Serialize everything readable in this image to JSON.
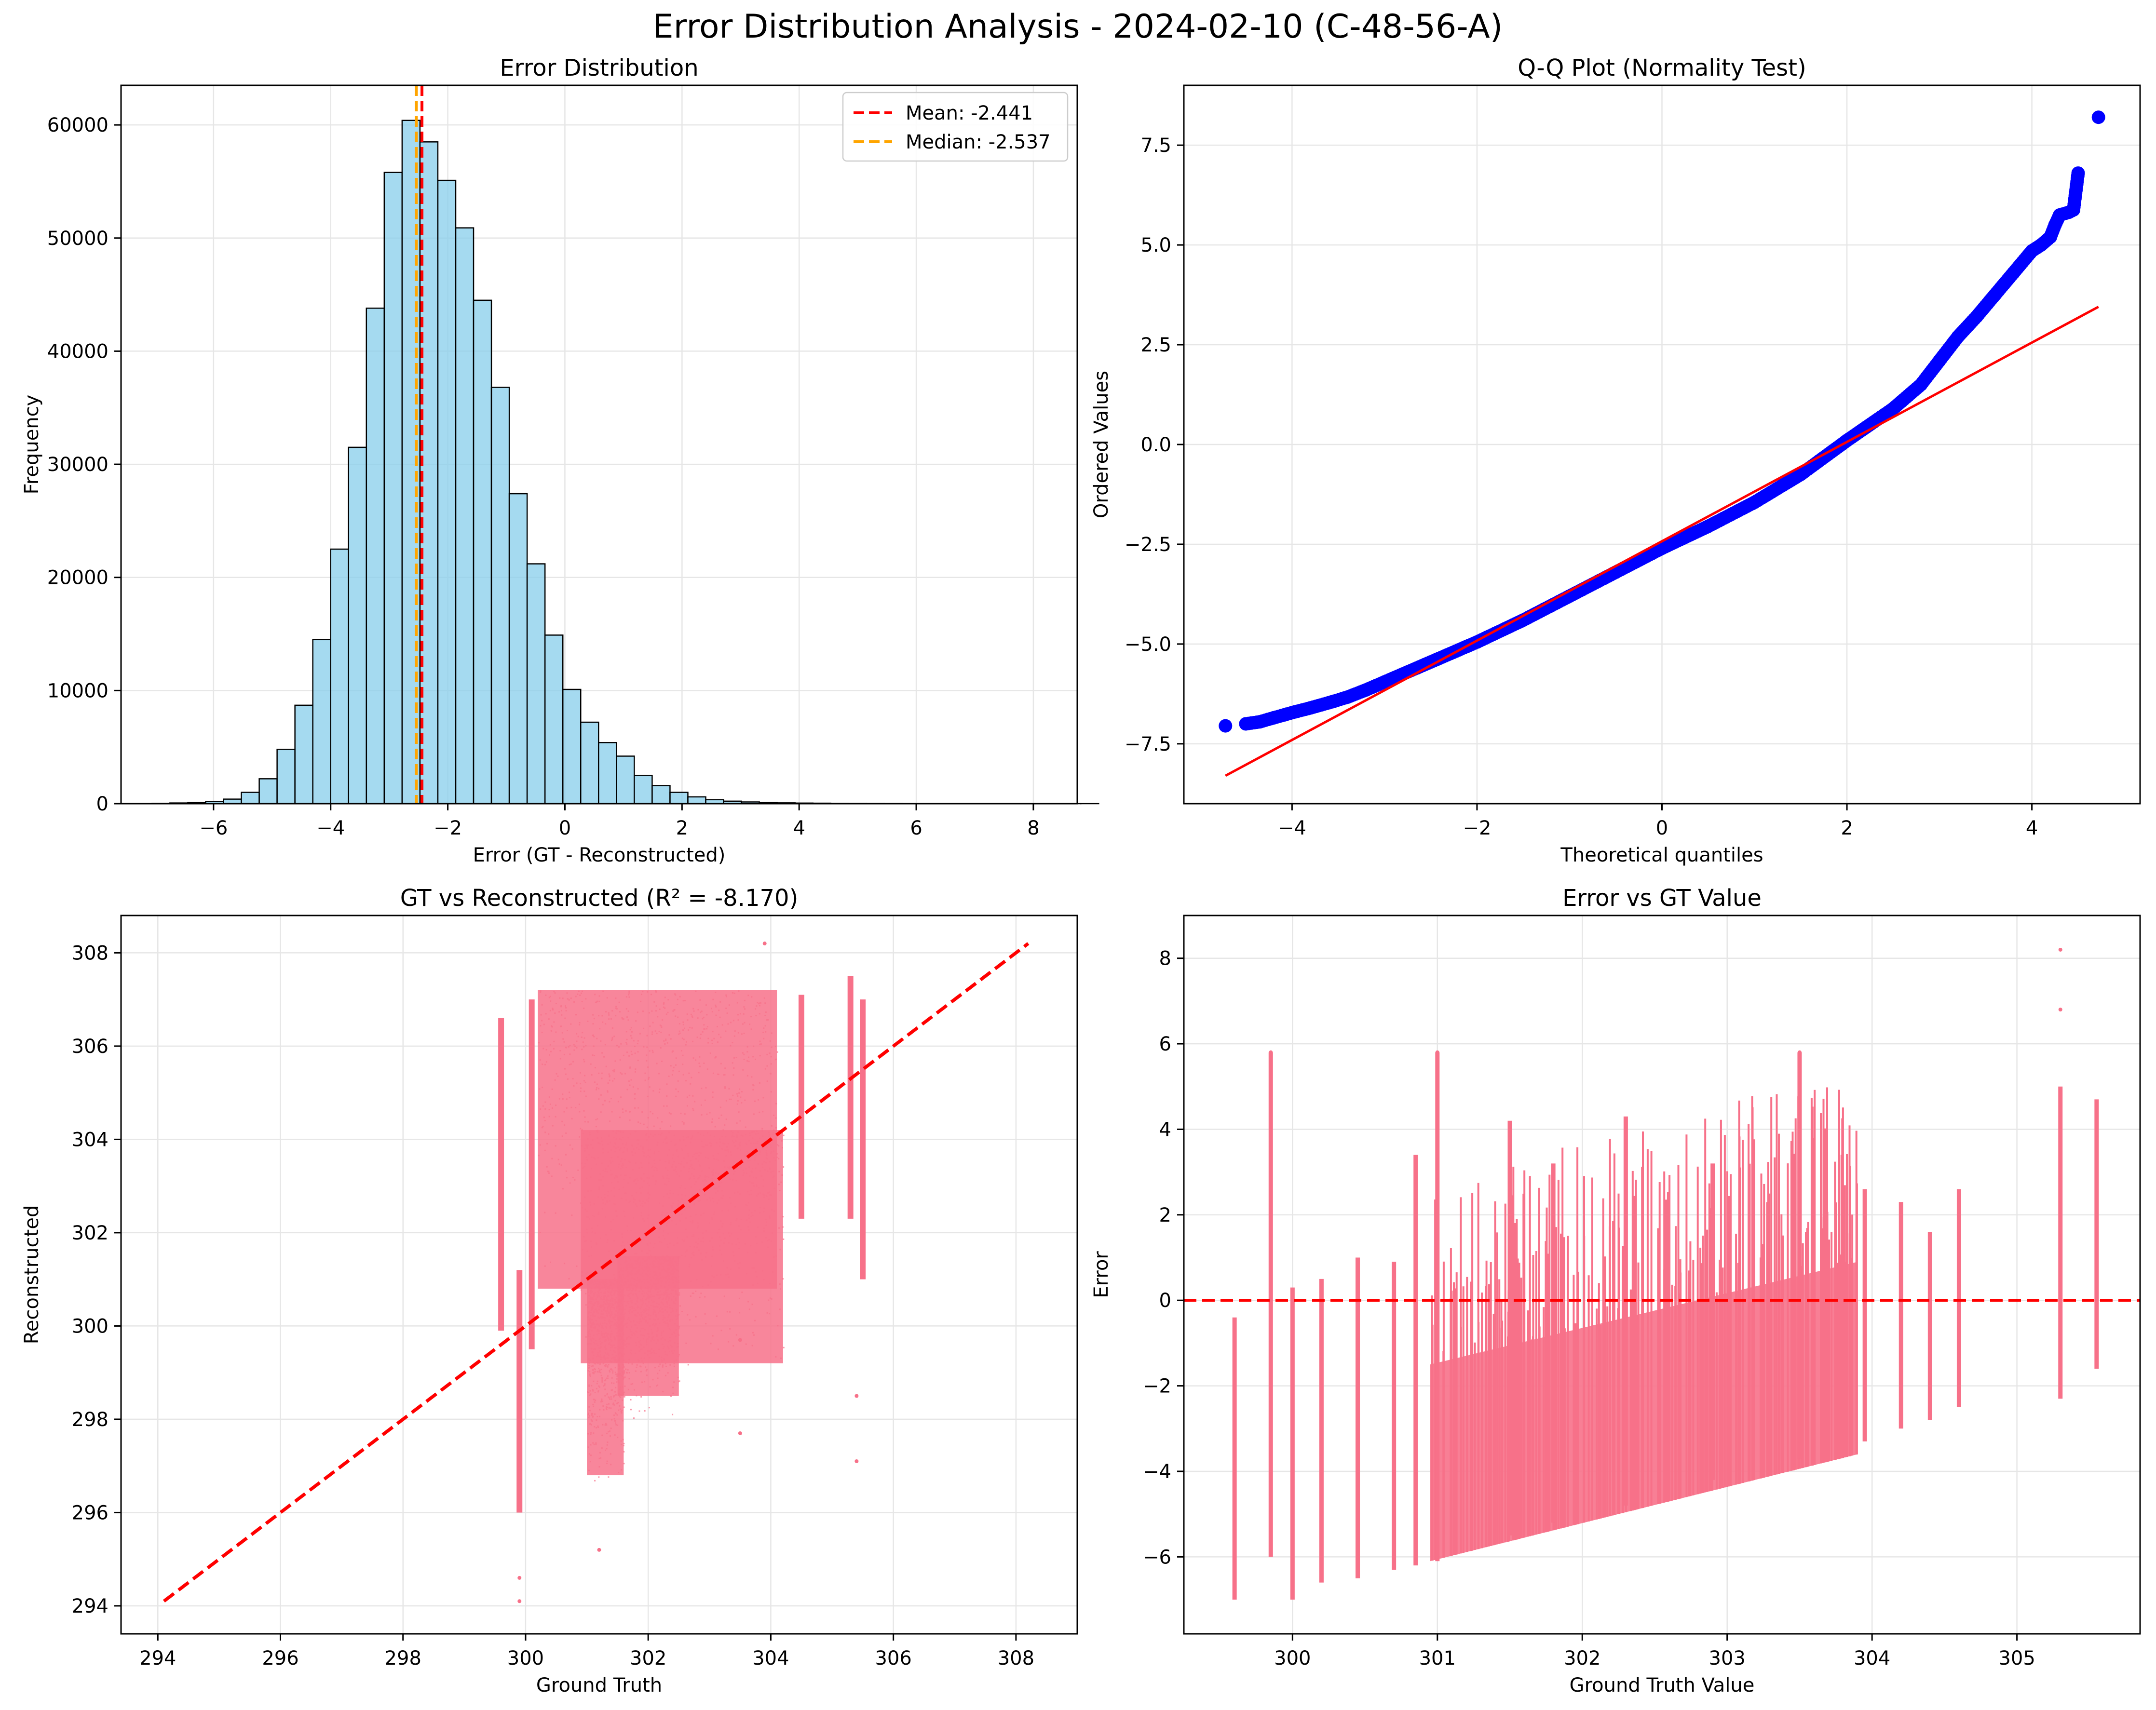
{
  "figure": {
    "suptitle": "Error Distribution Analysis - 2024-02-10 (C-48-56-A)"
  },
  "colors": {
    "hist_fill": "#87CEEB",
    "hist_edge": "#000000",
    "mean_line": "#ff0000",
    "median_line": "#ffa500",
    "qq_points": "#0000ff",
    "qq_line": "#ff0000",
    "scatter": "#f77189",
    "reference_line": "#ff0000",
    "grid": "#e6e6e6"
  },
  "chart_data": [
    {
      "type": "bar",
      "subtype": "histogram",
      "title": "Error Distribution",
      "xlabel": "Error (GT - Reconstructed)",
      "ylabel": "Frequency",
      "xlim": [
        -7.58,
        8.75
      ],
      "ylim": [
        0,
        63500
      ],
      "xticks": [
        -6,
        -4,
        -2,
        0,
        2,
        4,
        6,
        8
      ],
      "yticks": [
        0,
        10000,
        20000,
        30000,
        40000,
        50000,
        60000
      ],
      "grid": true,
      "legend_position": "top-right",
      "bin_start": -7.05,
      "bin_width": 0.305,
      "counts": [
        30,
        60,
        100,
        200,
        400,
        1000,
        2200,
        4800,
        8700,
        14500,
        22500,
        31500,
        43800,
        55800,
        60400,
        58500,
        55100,
        50900,
        44500,
        36800,
        27400,
        21200,
        14900,
        10100,
        7200,
        5400,
        4200,
        2500,
        1600,
        1000,
        600,
        350,
        220,
        150,
        100,
        70,
        50,
        40,
        30,
        25,
        20,
        15,
        10,
        8,
        6,
        5,
        4,
        3,
        2,
        2,
        2,
        1,
        1
      ],
      "annotations": [
        {
          "name": "Mean: -2.441",
          "x": -2.441,
          "style": "dashed",
          "color": "#ff0000"
        },
        {
          "name": "Median: -2.537",
          "x": -2.537,
          "style": "dashed",
          "color": "#ffa500"
        }
      ]
    },
    {
      "type": "scatter",
      "title": "Q-Q Plot (Normality Test)",
      "xlabel": "Theoretical quantiles",
      "ylabel": "Ordered Values",
      "xlim": [
        -5.17,
        5.17
      ],
      "ylim": [
        -9.0,
        9.0
      ],
      "xticks": [
        -4,
        -2,
        0,
        2,
        4
      ],
      "yticks": [
        -7.5,
        -5.0,
        -2.5,
        0.0,
        2.5,
        5.0,
        7.5
      ],
      "grid": true,
      "fit_line": [
        [
          -4.72,
          -8.3
        ],
        [
          4.72,
          3.45
        ]
      ],
      "points": [
        [
          -4.72,
          -7.05
        ],
        [
          -4.5,
          -7.0
        ],
        [
          -4.35,
          -6.95
        ],
        [
          -4.2,
          -6.85
        ],
        [
          -4.0,
          -6.72
        ],
        [
          -3.8,
          -6.6
        ],
        [
          -3.6,
          -6.47
        ],
        [
          -3.4,
          -6.33
        ],
        [
          -3.2,
          -6.15
        ],
        [
          -3.0,
          -5.95
        ],
        [
          -2.8,
          -5.75
        ],
        [
          -2.5,
          -5.45
        ],
        [
          -2.2,
          -5.15
        ],
        [
          -2.0,
          -4.95
        ],
        [
          -1.5,
          -4.4
        ],
        [
          -1.0,
          -3.8
        ],
        [
          -0.5,
          -3.2
        ],
        [
          0.0,
          -2.6
        ],
        [
          0.5,
          -2.05
        ],
        [
          1.0,
          -1.45
        ],
        [
          1.5,
          -0.75
        ],
        [
          2.0,
          0.1
        ],
        [
          2.5,
          0.9
        ],
        [
          2.8,
          1.5
        ],
        [
          3.0,
          2.1
        ],
        [
          3.2,
          2.7
        ],
        [
          3.4,
          3.2
        ],
        [
          3.6,
          3.75
        ],
        [
          3.8,
          4.3
        ],
        [
          4.0,
          4.85
        ],
        [
          4.1,
          5.0
        ],
        [
          4.2,
          5.2
        ],
        [
          4.25,
          5.5
        ],
        [
          4.3,
          5.75
        ],
        [
          4.4,
          5.82
        ],
        [
          4.45,
          5.88
        ],
        [
          4.5,
          6.8
        ],
        [
          4.72,
          8.2
        ]
      ]
    },
    {
      "type": "scatter",
      "title": "GT vs Reconstructed (R² = -8.170)",
      "xlabel": "Ground Truth",
      "ylabel": "Reconstructed",
      "xlim": [
        293.4,
        309.0
      ],
      "ylim": [
        293.4,
        308.8
      ],
      "xticks": [
        294,
        296,
        298,
        300,
        302,
        304,
        306,
        308
      ],
      "yticks": [
        294,
        296,
        298,
        300,
        302,
        304,
        306,
        308
      ],
      "grid": true,
      "reference_line": [
        [
          294.1,
          294.1
        ],
        [
          308.2,
          308.2
        ]
      ],
      "clusters": [
        {
          "x0": 300.2,
          "x1": 304.1,
          "y0": 300.8,
          "y1": 307.2
        },
        {
          "x0": 300.9,
          "x1": 304.2,
          "y0": 299.2,
          "y1": 304.2
        },
        {
          "x0": 301.0,
          "x1": 301.6,
          "y0": 296.8,
          "y1": 301.0
        },
        {
          "x0": 301.5,
          "x1": 302.5,
          "y0": 298.5,
          "y1": 301.5
        }
      ],
      "strips": [
        {
          "x": 299.6,
          "y0": 299.9,
          "y1": 306.6
        },
        {
          "x": 299.9,
          "y0": 296.0,
          "y1": 301.2
        },
        {
          "x": 300.1,
          "y0": 299.5,
          "y1": 307.0
        },
        {
          "x": 304.5,
          "y0": 302.3,
          "y1": 307.1
        },
        {
          "x": 305.3,
          "y0": 302.3,
          "y1": 307.5
        },
        {
          "x": 305.5,
          "y0": 301.0,
          "y1": 307.0
        }
      ],
      "outliers": [
        [
          299.9,
          294.1
        ],
        [
          299.9,
          294.6
        ],
        [
          305.4,
          297.1
        ],
        [
          305.4,
          298.5
        ],
        [
          303.5,
          297.7
        ],
        [
          303.9,
          308.2
        ],
        [
          301.2,
          295.2
        ],
        [
          303.5,
          299.7
        ]
      ]
    },
    {
      "type": "scatter",
      "title": "Error vs GT Value",
      "xlabel": "Ground Truth Value",
      "ylabel": "Error",
      "xlim": [
        299.25,
        305.85
      ],
      "ylim": [
        -7.8,
        9.0
      ],
      "xticks": [
        300,
        301,
        302,
        303,
        304,
        305
      ],
      "yticks": [
        -6,
        -4,
        -2,
        0,
        2,
        4,
        6,
        8
      ],
      "grid": true,
      "zero_line": 0,
      "band": {
        "x0": 300.95,
        "x1": 303.9,
        "lower_at_x0": -6.1,
        "lower_at_x1": -3.6,
        "upper_at_x0": -1.5,
        "upper_at_x1": 0.9
      },
      "strips": [
        {
          "x": 299.6,
          "y0": -7.0,
          "y1": -0.4
        },
        {
          "x": 299.85,
          "y0": -6.0,
          "y1": 5.8
        },
        {
          "x": 300.0,
          "y0": -7.0,
          "y1": 0.3
        },
        {
          "x": 300.2,
          "y0": -6.6,
          "y1": 0.5
        },
        {
          "x": 300.45,
          "y0": -6.5,
          "y1": 1.0
        },
        {
          "x": 300.7,
          "y0": -6.3,
          "y1": 0.9
        },
        {
          "x": 300.85,
          "y0": -6.2,
          "y1": 3.4
        },
        {
          "x": 301.0,
          "y0": -6.1,
          "y1": 5.8
        },
        {
          "x": 301.5,
          "y0": -5.5,
          "y1": 4.2
        },
        {
          "x": 301.8,
          "y0": -5.2,
          "y1": 3.2
        },
        {
          "x": 302.3,
          "y0": -4.8,
          "y1": 4.3
        },
        {
          "x": 302.9,
          "y0": -4.2,
          "y1": 3.2
        },
        {
          "x": 303.5,
          "y0": -3.7,
          "y1": 5.8
        },
        {
          "x": 303.95,
          "y0": -3.3,
          "y1": 2.6
        },
        {
          "x": 304.2,
          "y0": -3.0,
          "y1": 2.3
        },
        {
          "x": 304.4,
          "y0": -2.8,
          "y1": 1.6
        },
        {
          "x": 304.6,
          "y0": -2.5,
          "y1": 2.6
        },
        {
          "x": 305.3,
          "y0": -2.3,
          "y1": 5.0
        },
        {
          "x": 305.55,
          "y0": -1.6,
          "y1": 4.7
        }
      ],
      "outliers": [
        [
          305.3,
          8.2
        ],
        [
          305.3,
          6.8
        ],
        [
          301.0,
          5.8
        ],
        [
          303.5,
          5.8
        ],
        [
          299.85,
          5.8
        ]
      ]
    }
  ]
}
